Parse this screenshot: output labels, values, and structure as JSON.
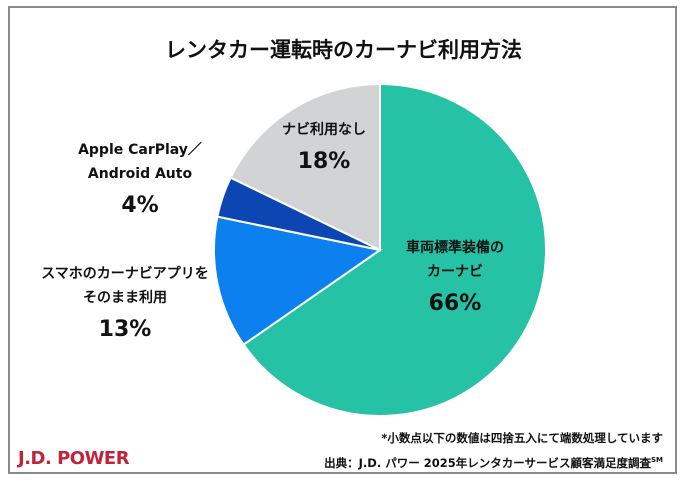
{
  "chart_data": {
    "type": "pie",
    "title": "レンタカー運転時のカーナビ利用方法",
    "start": "top",
    "direction": "clockwise",
    "slices": [
      {
        "label": "車両標準装備のカーナビ",
        "label_lines": [
          "車両標準装備の",
          "カーナビ"
        ],
        "value": 66,
        "display": "66%",
        "color": "#26c2a5"
      },
      {
        "label": "スマホのカーナビアプリをそのまま利用",
        "label_lines": [
          "スマホのカーナビアプリを",
          "そのまま利用"
        ],
        "value": 13,
        "display": "13%",
        "color": "#0c80ee"
      },
      {
        "label": "Apple CarPlay／Android Auto",
        "label_lines": [
          "Apple CarPlay／",
          "Android Auto"
        ],
        "value": 4,
        "display": "4%",
        "color": "#0b46b3"
      },
      {
        "label": "ナビ利用なし",
        "label_lines": [
          "ナビ利用なし"
        ],
        "value": 18,
        "display": "18%",
        "color": "#d1d3d5"
      }
    ]
  },
  "footer": {
    "note": "*小数点以下の数値は四捨五入にて端数処理しています",
    "source": "出典：J.D. パワー 2025年レンタカーサービス顧客満足度調査",
    "source_mark": "SM",
    "logo": "J.D. POWER"
  }
}
